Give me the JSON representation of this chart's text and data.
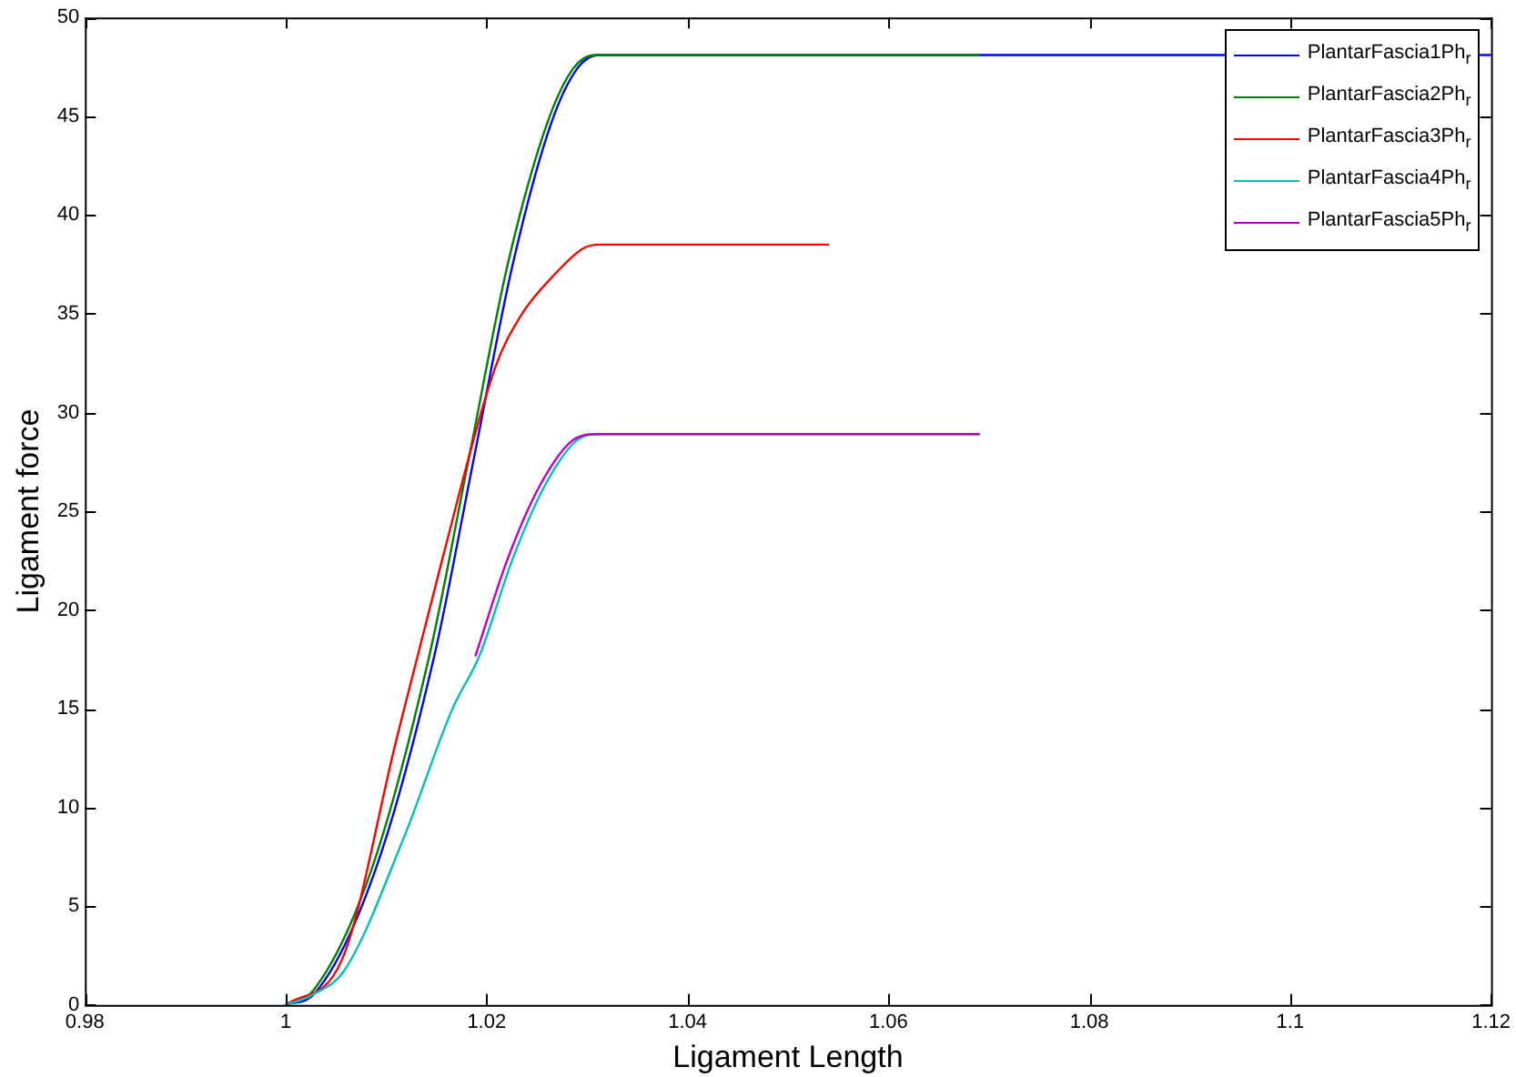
{
  "chart_data": {
    "type": "line",
    "xlabel": "Ligament Length",
    "ylabel": "Ligament force",
    "xlim": [
      0.98,
      1.12
    ],
    "xticks": [
      0.98,
      1,
      1.02,
      1.04,
      1.06,
      1.08,
      1.1,
      1.12
    ],
    "ylim": [
      0,
      50
    ],
    "yticks": [
      0,
      5,
      10,
      15,
      20,
      25,
      30,
      35,
      40,
      45,
      50
    ],
    "grid": false,
    "legend": "top right",
    "marker": "none",
    "line_style": "solid",
    "series": [
      {
        "name": "PlantarFascia1Ph$_{r}$",
        "color": "#0000ff",
        "x": [
          1,
          1.0029,
          1.0089,
          1.0148,
          1.0187,
          1.0226,
          1.0264,
          1.029,
          1.0311,
          1.12
        ],
        "values": [
          0,
          0.6,
          6.8,
          17.7,
          27.6,
          37.5,
          44.6,
          47.4,
          48.1,
          48.1
        ]
      },
      {
        "name": "PlantarFascia2Ph$_{r}$",
        "color": "#008000",
        "x": [
          1,
          1.0027,
          1.0085,
          1.0143,
          1.0182,
          1.0221,
          1.026,
          1.0286,
          1.0308,
          1.069
        ],
        "values": [
          0,
          0.7,
          6.8,
          17.7,
          27.6,
          37.5,
          44.6,
          47.4,
          48.1,
          48.1
        ]
      },
      {
        "name": "PlantarFascia3Ph$_{r}$",
        "color": "#ff0000",
        "x": [
          1,
          1.0056,
          1.011,
          1.0156,
          1.0208,
          1.0234,
          1.0266,
          1.0296,
          1.0312,
          1.054
        ],
        "values": [
          0,
          2.3,
          13.4,
          22.6,
          32.2,
          34.9,
          36.9,
          38.3,
          38.5,
          38.5
        ]
      },
      {
        "name": "PlantarFascia4Ph$_{r}$",
        "color": "#00bfbf",
        "x": [
          1,
          1.0026,
          1.0059,
          1.0117,
          1.0166,
          1.0193,
          1.0226,
          1.0258,
          1.029,
          1.0313,
          1.069
        ],
        "values": [
          0,
          0.5,
          1.8,
          8.4,
          15,
          17.7,
          22.6,
          26.3,
          28.6,
          28.9,
          28.9
        ]
      },
      {
        "name": "PlantarFascia5Ph$_{r}$",
        "color": "#bf00bf",
        "x": [
          1.0189,
          1.0221,
          1.0253,
          1.0286,
          1.031,
          1.069
        ],
        "values": [
          17.7,
          22.6,
          26.3,
          28.6,
          28.9,
          28.9
        ]
      }
    ]
  }
}
